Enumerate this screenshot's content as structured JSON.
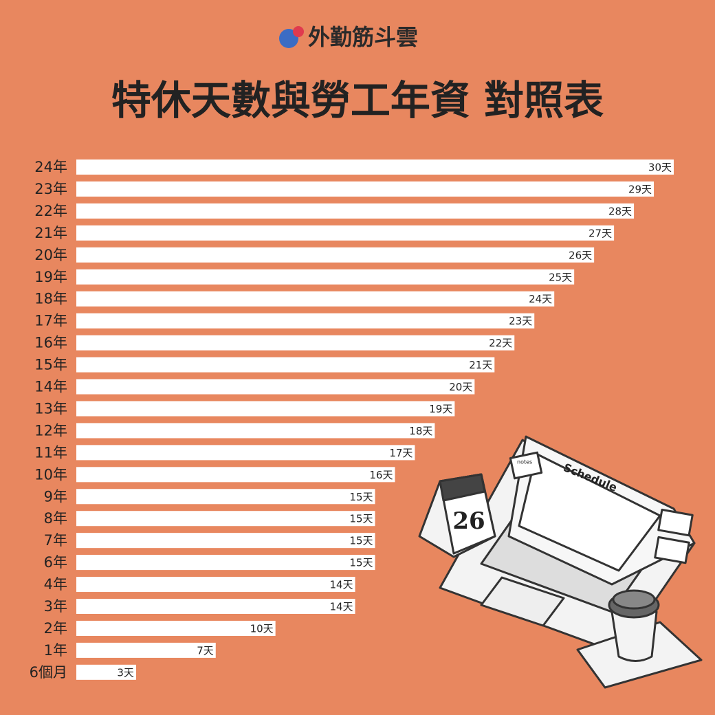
{
  "brand": "外勤筋斗雲",
  "illustration": {
    "screen_title": "Schedule",
    "calendar_day": "26",
    "note": "notes"
  },
  "chart_data": {
    "type": "hbar",
    "title": "特休天數與勞工年資 對照表",
    "categories": [
      "24年",
      "23年",
      "22年",
      "21年",
      "20年",
      "19年",
      "18年",
      "17年",
      "16年",
      "15年",
      "14年",
      "13年",
      "12年",
      "11年",
      "10年",
      "9年",
      "8年",
      "7年",
      "6年",
      "4年",
      "3年",
      "2年",
      "1年",
      "6個月"
    ],
    "values": [
      30,
      29,
      28,
      27,
      26,
      25,
      24,
      23,
      22,
      21,
      20,
      19,
      18,
      17,
      16,
      15,
      15,
      15,
      15,
      14,
      14,
      10,
      7,
      3
    ],
    "value_labels": [
      "30天",
      "29天",
      "28天",
      "27天",
      "26天",
      "25天",
      "24天",
      "23天",
      "22天",
      "21天",
      "20天",
      "19天",
      "18天",
      "17天",
      "16天",
      "15天",
      "15天",
      "15天",
      "15天",
      "14天",
      "14天",
      "10天",
      "7天",
      "3天"
    ],
    "color": "#ffffff",
    "xlim": [
      0,
      30
    ]
  }
}
